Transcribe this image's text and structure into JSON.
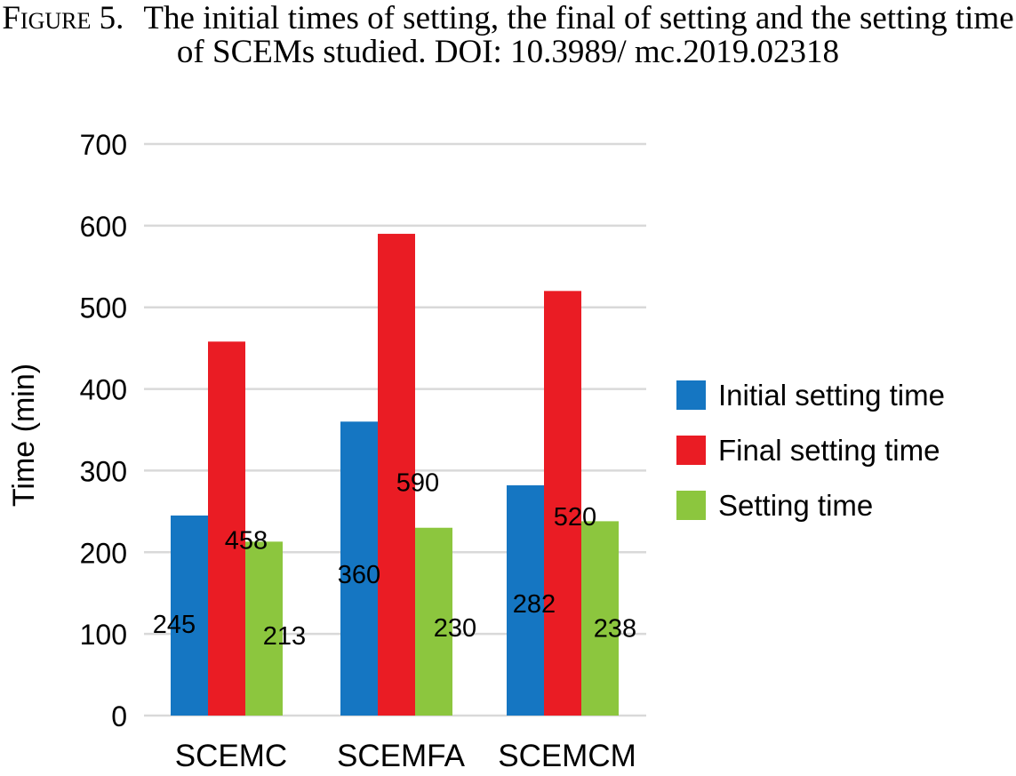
{
  "caption": {
    "label": "Figure 5.",
    "text": "The initial times of setting, the final of setting and the setting time of SCEMs studied. DOI: 10.3989/ mc.2019.02318"
  },
  "colors": {
    "initial": "#1576c2",
    "final": "#ea1c24",
    "setting": "#8cc63e",
    "grid": "#d9d9d9"
  },
  "chart_data": {
    "type": "bar",
    "categories": [
      "SCEMC",
      "SCEMFA",
      "SCEMCM"
    ],
    "series": [
      {
        "name": "Initial setting time",
        "values": [
          245,
          360,
          282
        ]
      },
      {
        "name": "Final setting time",
        "values": [
          458,
          590,
          520
        ]
      },
      {
        "name": "Setting time",
        "values": [
          213,
          230,
          238
        ]
      }
    ],
    "ylabel": "Time (min)",
    "ylim": [
      0,
      700
    ],
    "yticks": [
      0,
      100,
      200,
      300,
      400,
      500,
      600,
      700
    ],
    "grid": true,
    "legend": "right"
  }
}
